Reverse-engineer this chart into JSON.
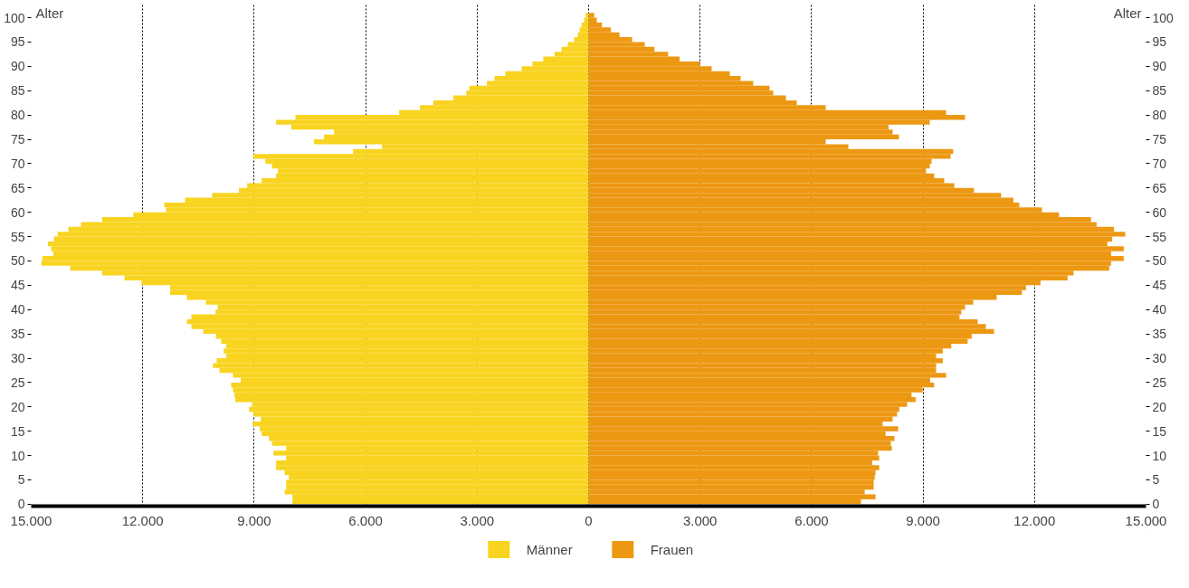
{
  "chart_data": {
    "type": "bar",
    "orientation": "horizontal",
    "ylabel": "Alter",
    "y2label": "Alter",
    "categories": [
      "100",
      null,
      null,
      null,
      null,
      "95",
      null,
      null,
      null,
      null,
      "90",
      null,
      null,
      null,
      null,
      "85",
      null,
      null,
      null,
      null,
      "80",
      null,
      null,
      null,
      null,
      "75",
      null,
      null,
      null,
      null,
      "70",
      null,
      null,
      null,
      null,
      "65",
      null,
      null,
      null,
      null,
      "60",
      null,
      null,
      null,
      null,
      "55",
      null,
      null,
      null,
      null,
      "50",
      null,
      null,
      null,
      null,
      "45",
      null,
      null,
      null,
      null,
      "40",
      null,
      null,
      null,
      null,
      "35",
      null,
      null,
      null,
      null,
      "30",
      null,
      null,
      null,
      null,
      "25",
      null,
      null,
      null,
      null,
      "20",
      null,
      null,
      null,
      null,
      "15",
      null,
      null,
      null,
      null,
      "10",
      null,
      null,
      null,
      null,
      "5",
      null,
      null,
      null,
      null,
      "0"
    ],
    "series": [
      {
        "name": "Männer",
        "color": "#f8d420",
        "values": [
          -80,
          -120,
          -190,
          -240,
          -290,
          -390,
          -560,
          -730,
          -920,
          -1220,
          -1510,
          -1800,
          -2240,
          -2530,
          -2740,
          -3210,
          -3290,
          -3640,
          -4180,
          -4540,
          -5100,
          -7890,
          -8410,
          -8000,
          -6850,
          -7120,
          -7390,
          -5560,
          -6340,
          -9020,
          -8700,
          -8520,
          -8360,
          -8410,
          -8800,
          -9190,
          -9410,
          -10130,
          -10860,
          -11420,
          -11370,
          -12250,
          -13090,
          -13660,
          -14000,
          -14290,
          -14390,
          -14550,
          -14460,
          -14410,
          -14700,
          -14730,
          -13950,
          -13090,
          -12490,
          -12030,
          -11260,
          -11260,
          -10810,
          -10300,
          -9980,
          -10040,
          -10690,
          -10810,
          -10690,
          -10370,
          -10030,
          -9890,
          -9750,
          -9820,
          -9750,
          -10010,
          -10110,
          -9930,
          -9570,
          -9360,
          -9620,
          -9570,
          -9530,
          -9510,
          -9060,
          -9140,
          -9020,
          -8820,
          -9040,
          -8850,
          -8800,
          -8600,
          -8520,
          -8140,
          -8480,
          -8140,
          -8410,
          -8410,
          -8180,
          -8070,
          -8140,
          -8140,
          -8180,
          -7970,
          -7970
        ]
      },
      {
        "name": "Frauen",
        "color": "#ed9813",
        "values": [
          150,
          220,
          360,
          600,
          830,
          1170,
          1510,
          1770,
          2140,
          2450,
          3000,
          3310,
          3800,
          4090,
          4430,
          4870,
          4970,
          5310,
          5600,
          6380,
          9620,
          10130,
          9180,
          8070,
          8180,
          8350,
          6380,
          6990,
          9810,
          9740,
          9230,
          9180,
          9080,
          9300,
          9570,
          9840,
          10370,
          11100,
          11430,
          11590,
          12200,
          12660,
          13520,
          13670,
          14140,
          14440,
          14090,
          13960,
          14400,
          14060,
          14400,
          14060,
          14010,
          13050,
          12890,
          12160,
          11770,
          11660,
          10980,
          10350,
          10130,
          10030,
          9980,
          10470,
          10690,
          10910,
          10310,
          10200,
          9760,
          9530,
          9350,
          9530,
          9350,
          9350,
          9620,
          9190,
          9300,
          8990,
          8690,
          8800,
          8570,
          8360,
          8300,
          8180,
          7910,
          8330,
          7990,
          8230,
          8130,
          8160,
          7790,
          7820,
          7630,
          7820,
          7720,
          7700,
          7670,
          7670,
          7430,
          7720,
          7330
        ]
      }
    ],
    "xlim": [
      -15000,
      15000
    ],
    "xticks": [
      {
        "value": -15000,
        "label": "15.000"
      },
      {
        "value": -12000,
        "label": "12.000"
      },
      {
        "value": -9000,
        "label": "9.000"
      },
      {
        "value": -6000,
        "label": "6.000"
      },
      {
        "value": -3000,
        "label": "3.000"
      },
      0,
      {
        "value": 3000,
        "label": "3.000"
      },
      {
        "value": 6000,
        "label": "6.000"
      },
      {
        "value": 9000,
        "label": "9.000"
      },
      {
        "value": 12000,
        "label": "12.000"
      },
      {
        "value": 15000,
        "label": "15.000"
      }
    ],
    "grid": "x",
    "legend": "bottom",
    "stacked": true
  }
}
